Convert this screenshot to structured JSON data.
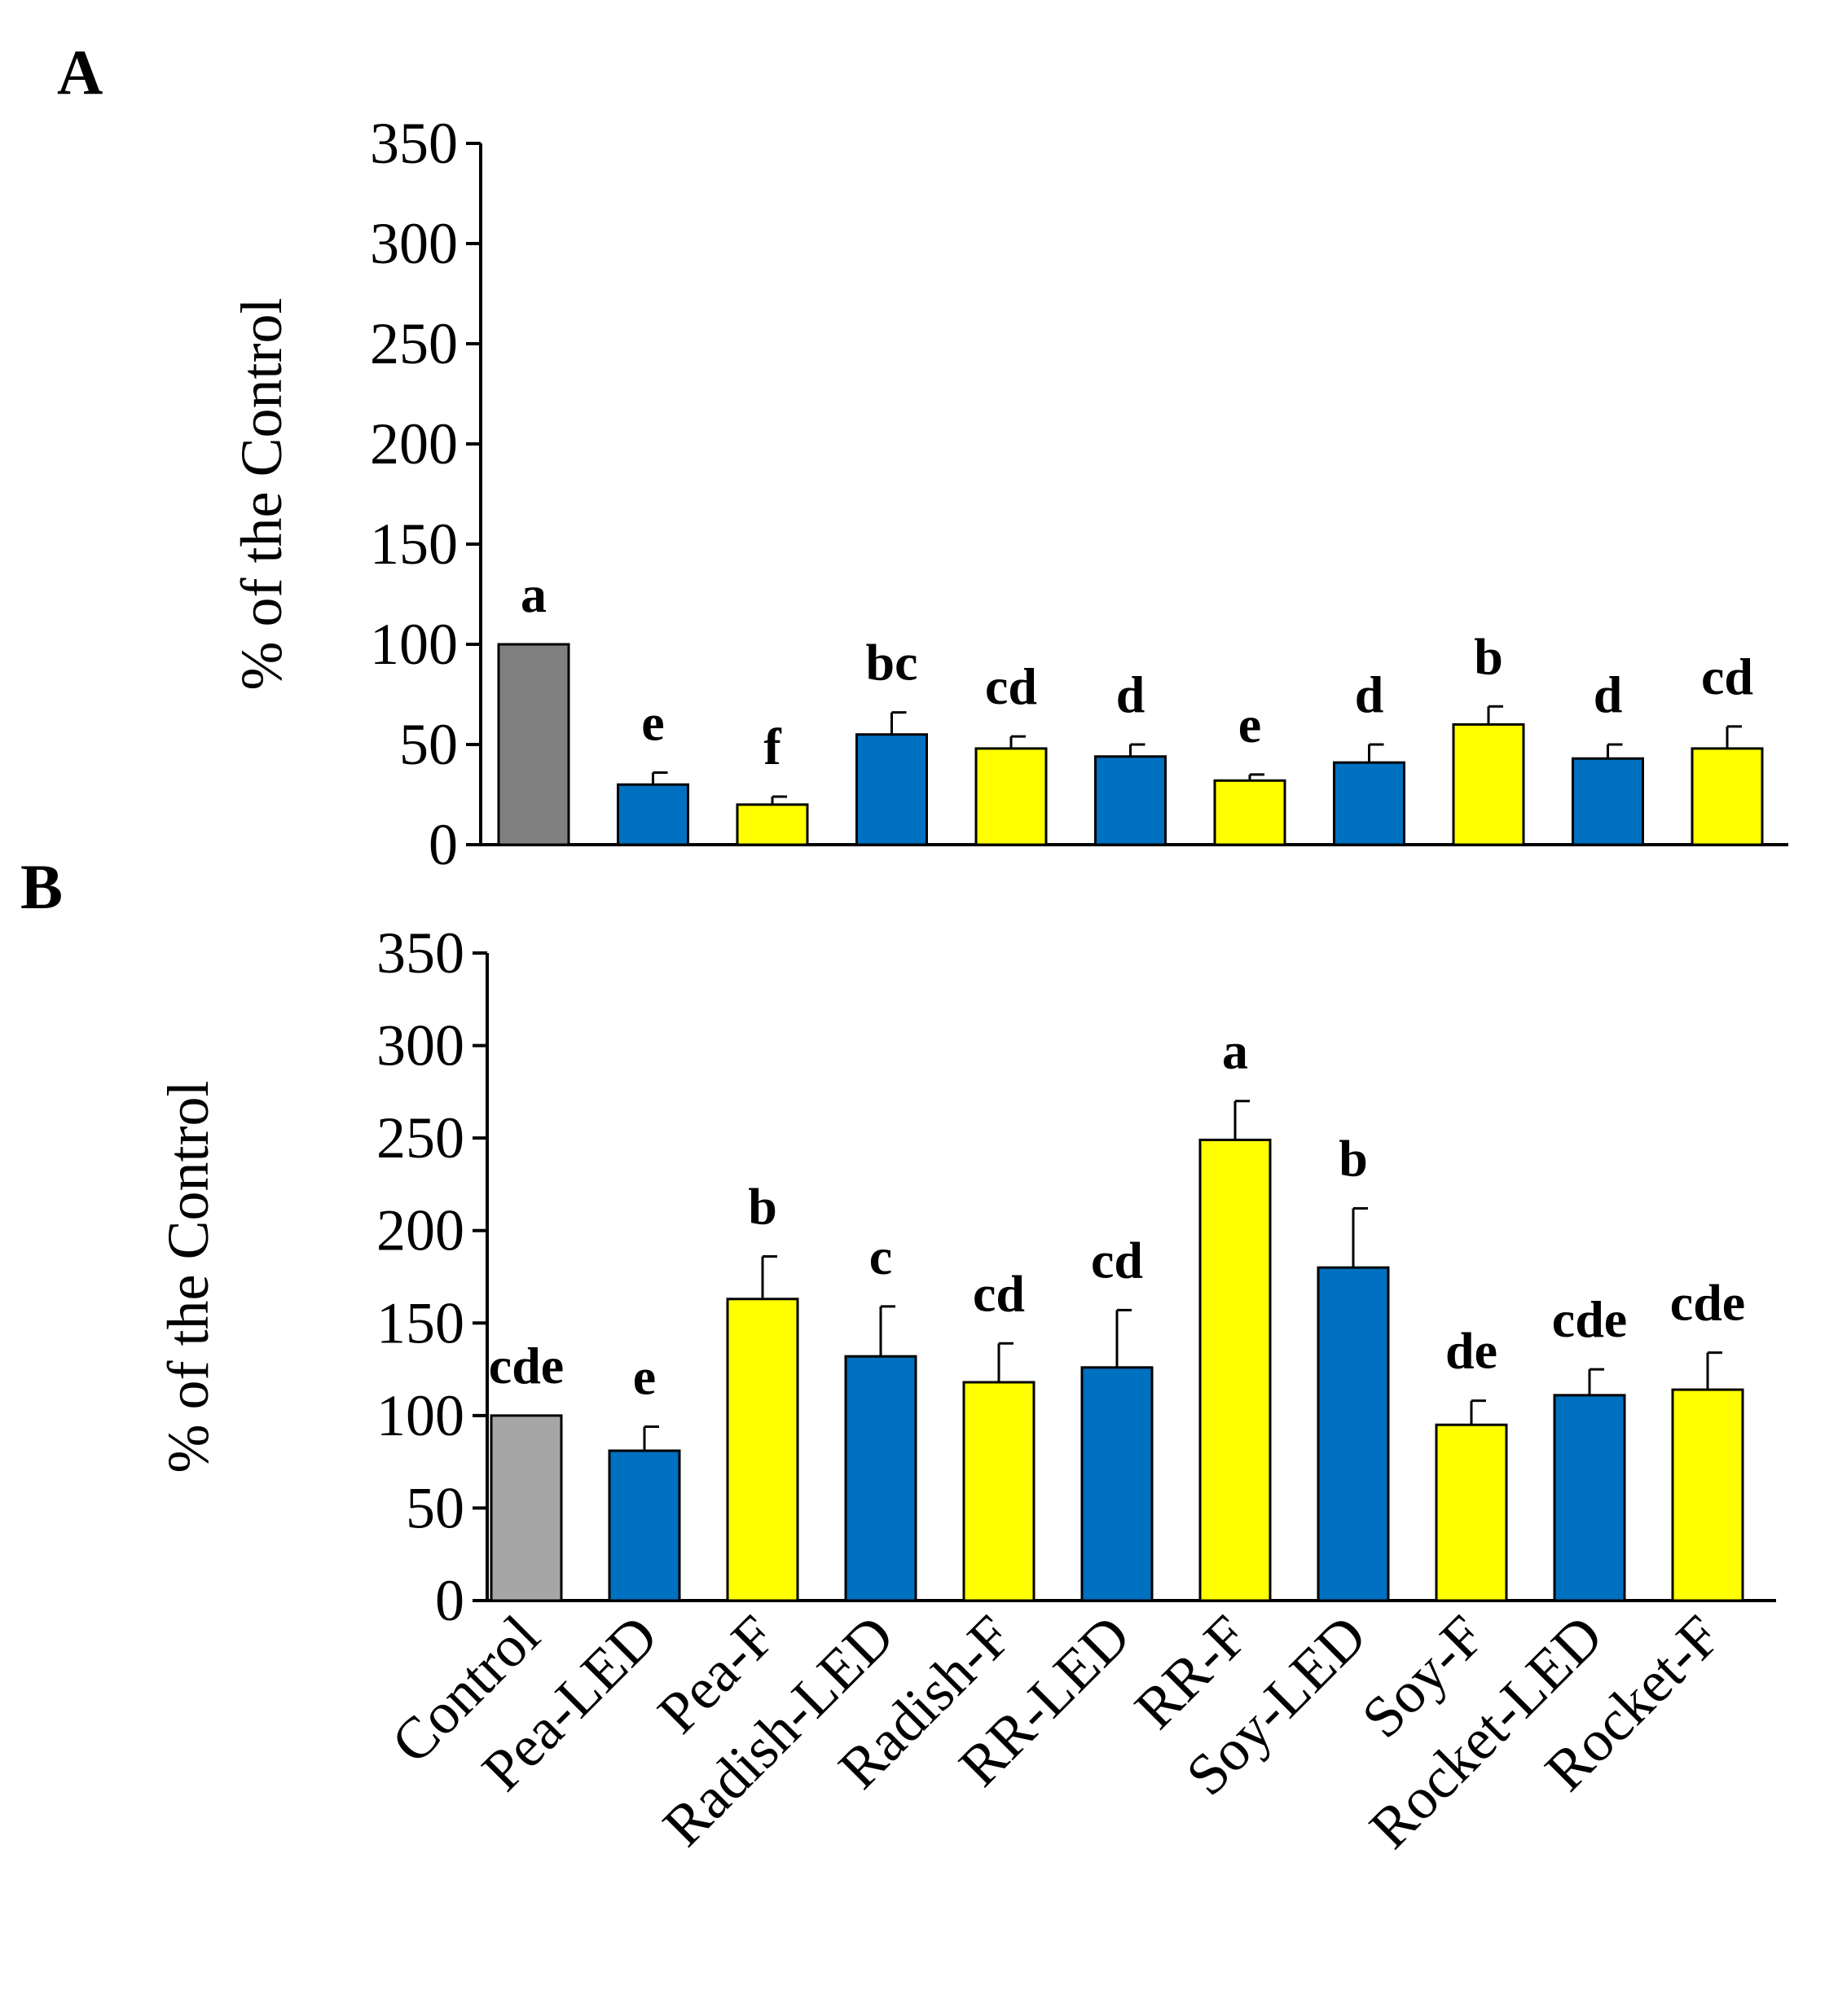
{
  "chart_data": [
    {
      "panel": "A",
      "type": "bar",
      "ylabel": "% of the Control",
      "ylim": [
        0,
        350
      ],
      "yticks": [
        0,
        50,
        100,
        150,
        200,
        250,
        300,
        350
      ],
      "categories": [
        "Control",
        "Pea-LED",
        "Pea-F",
        "Radish-LED",
        "Radish-F",
        "RR-LED",
        "RR-F",
        "Soy-LED",
        "Soy-F",
        "Rocket-LED",
        "Rocket-F"
      ],
      "values": [
        100,
        30,
        20,
        55,
        48,
        44,
        32,
        41,
        60,
        43,
        48
      ],
      "errors": [
        0,
        6,
        4,
        11,
        6,
        6,
        3,
        9,
        9,
        7,
        11
      ],
      "significance": [
        "a",
        "e",
        "f",
        "bc",
        "cd",
        "d",
        "e",
        "d",
        "b",
        "d",
        "cd"
      ],
      "colors": [
        "#808080",
        "#0070C0",
        "#FFFF00",
        "#0070C0",
        "#FFFF00",
        "#0070C0",
        "#FFFF00",
        "#0070C0",
        "#FFFF00",
        "#0070C0",
        "#FFFF00"
      ]
    },
    {
      "panel": "B",
      "type": "bar",
      "ylabel": "% of the Control",
      "ylim": [
        0,
        350
      ],
      "yticks": [
        0,
        50,
        100,
        150,
        200,
        250,
        300,
        350
      ],
      "categories": [
        "Control",
        "Pea-LED",
        "Pea-F",
        "Radish-LED",
        "Radish-F",
        "RR-LED",
        "RR-F",
        "Soy-LED",
        "Soy-F",
        "Rocket-LED",
        "Rocket-F"
      ],
      "values": [
        100,
        81,
        163,
        132,
        118,
        126,
        249,
        180,
        95,
        111,
        114
      ],
      "errors": [
        0,
        13,
        23,
        27,
        21,
        31,
        21,
        32,
        13,
        14,
        20
      ],
      "significance": [
        "cde",
        "e",
        "b",
        "c",
        "cd",
        "cd",
        "a",
        "b",
        "de",
        "cde",
        "cde"
      ],
      "colors": [
        "#A6A6A6",
        "#0070C0",
        "#FFFF00",
        "#0070C0",
        "#FFFF00",
        "#0070C0",
        "#FFFF00",
        "#0070C0",
        "#FFFF00",
        "#0070C0",
        "#FFFF00"
      ]
    }
  ]
}
